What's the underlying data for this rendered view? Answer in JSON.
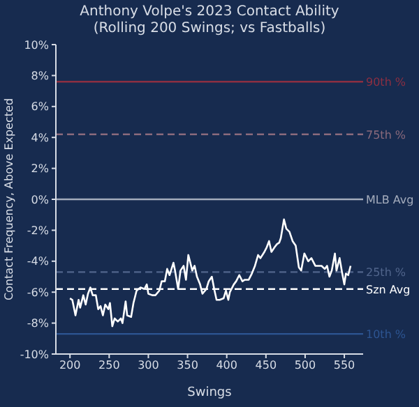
{
  "chart_data": {
    "type": "line",
    "title": "Anthony Volpe's 2023 Contact Ability",
    "subtitle": "(Rolling 200 Swings; vs Fastballs)",
    "xlabel": "Swings",
    "ylabel": "Contact Frequency, Above Expected",
    "x": [
      200,
      203,
      207,
      211,
      213,
      217,
      220,
      223,
      226,
      229,
      233,
      236,
      239,
      242,
      245,
      249,
      251,
      254,
      257,
      261,
      265,
      267,
      271,
      273,
      278,
      281,
      285,
      290,
      295,
      298,
      300,
      305,
      309,
      314,
      317,
      321,
      324,
      327,
      332,
      334,
      338,
      341,
      345,
      348,
      351,
      356,
      359,
      362,
      366,
      369,
      374,
      377,
      381,
      384,
      387,
      391,
      396,
      399,
      402,
      404,
      409,
      412,
      416,
      420,
      423,
      428,
      432,
      436,
      440,
      443,
      448,
      451,
      454,
      457,
      461,
      464,
      467,
      469,
      473,
      476,
      480,
      484,
      488,
      492,
      495,
      499,
      504,
      508,
      513,
      517,
      521,
      525,
      528,
      531,
      534,
      538,
      540,
      544,
      547,
      550,
      552,
      555,
      558
    ],
    "series": [
      {
        "color": "#ffffff",
        "values": [
          -6.4,
          -6.5,
          -7.5,
          -6.5,
          -7.0,
          -6.2,
          -6.8,
          -6.1,
          -5.7,
          -6.2,
          -6.2,
          -7.1,
          -6.9,
          -7.5,
          -6.8,
          -7.1,
          -6.7,
          -8.2,
          -7.7,
          -7.9,
          -7.7,
          -8.0,
          -6.6,
          -7.5,
          -7.6,
          -6.7,
          -5.9,
          -5.7,
          -5.8,
          -5.5,
          -6.1,
          -6.2,
          -6.2,
          -5.9,
          -5.3,
          -5.3,
          -4.5,
          -4.9,
          -4.1,
          -4.6,
          -5.8,
          -4.6,
          -4.3,
          -5.2,
          -3.6,
          -4.6,
          -4.3,
          -5.0,
          -5.5,
          -6.1,
          -5.8,
          -5.3,
          -5.0,
          -5.8,
          -6.5,
          -6.5,
          -6.4,
          -5.9,
          -6.5,
          -6.0,
          -5.5,
          -5.3,
          -4.9,
          -5.3,
          -5.2,
          -5.2,
          -4.8,
          -4.3,
          -3.6,
          -3.8,
          -3.4,
          -3.1,
          -2.7,
          -3.4,
          -3.1,
          -2.9,
          -2.8,
          -2.5,
          -1.3,
          -1.9,
          -2.1,
          -2.7,
          -3.0,
          -4.4,
          -4.6,
          -3.5,
          -4.0,
          -3.8,
          -4.3,
          -4.3,
          -4.3,
          -4.5,
          -4.3,
          -5.0,
          -4.6,
          -3.5,
          -4.6,
          -3.8,
          -4.7,
          -5.5,
          -4.8,
          -4.9,
          -4.3
        ]
      }
    ],
    "xlim": [
      182,
      574
    ],
    "ylim": [
      -10,
      10
    ],
    "xticks": [
      200,
      250,
      300,
      350,
      400,
      450,
      500,
      550
    ],
    "yticks": [
      {
        "value": -10,
        "label": "-10%"
      },
      {
        "value": -8,
        "label": "-8%"
      },
      {
        "value": -6,
        "label": "-6%"
      },
      {
        "value": -4,
        "label": "-4%"
      },
      {
        "value": -2,
        "label": "-2%"
      },
      {
        "value": 0,
        "label": "0%"
      },
      {
        "value": 2,
        "label": "2%"
      },
      {
        "value": 4,
        "label": "4%"
      },
      {
        "value": 6,
        "label": "6%"
      },
      {
        "value": 8,
        "label": "8%"
      },
      {
        "value": 10,
        "label": "10%"
      }
    ],
    "ref_lines": [
      {
        "axis": "y",
        "value": 7.6,
        "label": "90th %",
        "color": "#8c2f42",
        "line_style": "solid"
      },
      {
        "axis": "y",
        "value": 4.2,
        "label": "75th %",
        "color": "#8a6a7c",
        "line_style": "dashed"
      },
      {
        "axis": "y",
        "value": 0,
        "label": "MLB Avg",
        "color": "#a4acbc",
        "line_style": "solid"
      },
      {
        "axis": "y",
        "value": -4.7,
        "label": "25th %",
        "color": "#51658c",
        "line_style": "dashed"
      },
      {
        "axis": "y",
        "value": -5.8,
        "label": "Szn Avg",
        "color": "#ffffff",
        "line_style": "dashed"
      },
      {
        "axis": "y",
        "value": -8.7,
        "label": "10th %",
        "color": "#2d5592",
        "line_style": "solid"
      }
    ],
    "grid": false,
    "marker": "none",
    "line_style": "solid"
  }
}
